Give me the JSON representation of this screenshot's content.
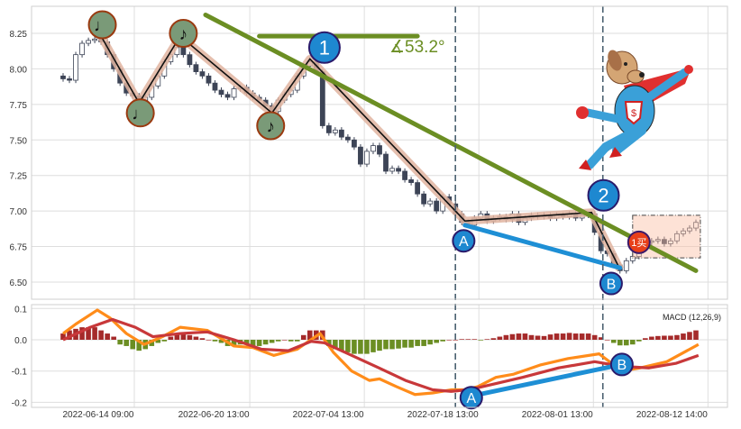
{
  "chart_data": {
    "type": "candlestick",
    "price_panel": {
      "ylim": [
        6.45,
        8.38
      ],
      "yticks": [
        "8.25",
        "8.00",
        "7.75",
        "7.50",
        "7.25",
        "7.00",
        "6.75",
        "6.50"
      ],
      "grid": true,
      "closes": [
        7.93,
        7.92,
        8.1,
        8.18,
        8.2,
        8.21,
        8.19,
        8.1,
        8.0,
        7.9,
        7.83,
        7.81,
        7.78,
        7.8,
        7.88,
        7.95,
        8.05,
        8.1,
        8.15,
        8.1,
        8.03,
        7.98,
        7.95,
        7.9,
        7.85,
        7.82,
        7.8,
        7.86,
        7.87,
        7.83,
        7.8,
        7.78,
        7.74,
        7.7,
        7.78,
        7.82,
        7.85,
        7.95,
        8.02,
        8.05,
        7.98,
        7.6,
        7.55,
        7.57,
        7.52,
        7.5,
        7.45,
        7.33,
        7.42,
        7.46,
        7.4,
        7.28,
        7.3,
        7.28,
        7.22,
        7.2,
        7.12,
        7.05,
        7.07,
        7.0,
        7.1,
        7.05,
        6.98,
        6.92,
        6.9,
        6.95,
        6.98,
        6.93,
        6.95,
        6.96,
        6.94,
        6.98,
        6.92,
        6.95,
        6.97,
        6.96,
        6.97,
        6.95,
        6.97,
        6.96,
        6.98,
        6.95,
        6.97,
        6.98,
        6.85,
        6.72,
        6.7,
        6.62,
        6.58,
        6.65,
        6.68,
        6.76,
        6.78,
        6.79,
        6.8,
        6.77,
        6.79,
        6.84,
        6.86,
        6.88,
        6.92
      ],
      "first_open": 7.95,
      "zigzag": [
        [
          6,
          8.23
        ],
        [
          12,
          7.76
        ],
        [
          18.5,
          8.23
        ],
        [
          33,
          7.69
        ],
        [
          39,
          8.07
        ],
        [
          63.5,
          6.93
        ],
        [
          83.5,
          6.99
        ],
        [
          88,
          6.59
        ]
      ],
      "trendline": [
        [
          22.5,
          8.38
        ],
        [
          100,
          6.58
        ]
      ],
      "angle_reference": [
        [
          31,
          8.23
        ],
        [
          56,
          8.23
        ]
      ],
      "angle_label": "∡53.2°",
      "divergence_line": [
        [
          63.5,
          6.9
        ],
        [
          88,
          6.6
        ]
      ],
      "note_markers": [
        {
          "i": 6.2,
          "p": 8.31,
          "glyph": "♩"
        },
        {
          "i": 12.2,
          "p": 7.69,
          "glyph": "♩"
        },
        {
          "i": 19,
          "p": 8.25,
          "glyph": "♪"
        },
        {
          "i": 32.8,
          "p": 7.6,
          "glyph": "♪"
        }
      ],
      "wave_markers": [
        {
          "i": 41.3,
          "p": 8.15,
          "label": "1"
        },
        {
          "i": 85.4,
          "p": 7.11,
          "label": "2"
        },
        {
          "i": 63.3,
          "p": 6.79,
          "label": "A"
        },
        {
          "i": 86.6,
          "p": 6.49,
          "label": "B"
        }
      ],
      "buy_marker": {
        "i": 91,
        "p": 6.78,
        "label": "1买"
      },
      "zone_box": {
        "i0": 90,
        "i1": 100.7,
        "p0": 6.67,
        "p1": 6.97
      },
      "signal_lines_at": [
        64.2,
        87.5
      ]
    },
    "macd_panel": {
      "title": "MACD (12,26,9)",
      "ylim": [
        -0.2,
        0.105
      ],
      "yticks": [
        "0.1",
        "0.0",
        "-0.1",
        "-0.2"
      ],
      "histogram": [
        0.02,
        0.03,
        0.035,
        0.04,
        0.04,
        0.04,
        0.03,
        0.02,
        0.01,
        -0.015,
        -0.02,
        -0.03,
        -0.035,
        -0.03,
        -0.02,
        -0.01,
        -0.005,
        0.01,
        0.02,
        0.02,
        0.015,
        0.01,
        0.005,
        0.0,
        -0.005,
        -0.01,
        -0.02,
        -0.02,
        -0.015,
        -0.015,
        -0.02,
        -0.02,
        -0.015,
        -0.01,
        -0.005,
        0.0,
        -0.005,
        -0.005,
        0.015,
        0.03,
        0.03,
        0.03,
        -0.02,
        -0.03,
        -0.035,
        -0.04,
        -0.045,
        -0.045,
        -0.045,
        -0.04,
        -0.035,
        -0.03,
        -0.03,
        -0.028,
        -0.025,
        -0.025,
        -0.02,
        -0.02,
        -0.015,
        -0.01,
        -0.005,
        0.0,
        0.0,
        0.002,
        0.002,
        0.002,
        -0.002,
        0.002,
        0.005,
        0.01,
        0.015,
        0.018,
        0.02,
        0.02,
        0.015,
        0.013,
        0.012,
        0.017,
        0.02,
        0.02,
        0.022,
        0.02,
        0.02,
        0.02,
        0.015,
        0.008,
        0.0,
        -0.01,
        -0.018,
        -0.018,
        -0.015,
        -0.005,
        0.005,
        0.01,
        0.012,
        0.013,
        0.013,
        0.015,
        0.02,
        0.025,
        0.03
      ],
      "dif": [
        [
          0,
          0.02
        ],
        [
          2,
          0.05
        ],
        [
          5.4,
          0.095
        ],
        [
          7.4,
          0.07
        ],
        [
          10,
          0.02
        ],
        [
          12.8,
          -0.015
        ],
        [
          15.7,
          0.01
        ],
        [
          18.5,
          0.04
        ],
        [
          22.8,
          0.03
        ],
        [
          27,
          -0.02
        ],
        [
          30,
          -0.025
        ],
        [
          33.3,
          -0.05
        ],
        [
          37,
          -0.03
        ],
        [
          40.6,
          0.02
        ],
        [
          42.7,
          -0.04
        ],
        [
          45.6,
          -0.1
        ],
        [
          48.4,
          -0.13
        ],
        [
          50,
          -0.125
        ],
        [
          52.7,
          -0.15
        ],
        [
          55.6,
          -0.175
        ],
        [
          58.4,
          -0.17
        ],
        [
          61.3,
          -0.16
        ],
        [
          63.4,
          -0.16
        ],
        [
          65.5,
          -0.15
        ],
        [
          68.4,
          -0.12
        ],
        [
          71.2,
          -0.11
        ],
        [
          75.5,
          -0.08
        ],
        [
          79.8,
          -0.06
        ],
        [
          84.7,
          -0.045
        ],
        [
          88.3,
          -0.1
        ],
        [
          91.2,
          -0.09
        ],
        [
          95.4,
          -0.07
        ],
        [
          100.4,
          -0.015
        ]
      ],
      "dea": [
        [
          0,
          0.0
        ],
        [
          4.3,
          0.04
        ],
        [
          7.8,
          0.065
        ],
        [
          11.4,
          0.04
        ],
        [
          14.2,
          0.01
        ],
        [
          18.5,
          0.02
        ],
        [
          22.8,
          0.025
        ],
        [
          27,
          0.0
        ],
        [
          31.3,
          -0.03
        ],
        [
          35.6,
          -0.035
        ],
        [
          39.2,
          -0.005
        ],
        [
          41.3,
          -0.01
        ],
        [
          45.6,
          -0.05
        ],
        [
          49.9,
          -0.09
        ],
        [
          54.1,
          -0.13
        ],
        [
          58.4,
          -0.16
        ],
        [
          61.3,
          -0.165
        ],
        [
          64.1,
          -0.16
        ],
        [
          68.4,
          -0.14
        ],
        [
          72.6,
          -0.12
        ],
        [
          78.3,
          -0.09
        ],
        [
          84,
          -0.07
        ],
        [
          88.3,
          -0.085
        ],
        [
          92.6,
          -0.09
        ],
        [
          96.9,
          -0.075
        ],
        [
          100.4,
          -0.05
        ]
      ],
      "divergence_line": [
        [
          64.5,
          -0.18
        ],
        [
          88,
          -0.08
        ]
      ],
      "wave_markers": [
        {
          "i": 64.5,
          "v": -0.185,
          "label": "A"
        },
        {
          "i": 88.3,
          "v": -0.079,
          "label": "B"
        }
      ]
    },
    "xticks": [
      {
        "i": 11.25,
        "label": "2022-06-14 09:00"
      },
      {
        "i": 29.5,
        "label": "2022-06-20 13:00"
      },
      {
        "i": 47.6,
        "label": "2022-07-04 13:00"
      },
      {
        "i": 65.7,
        "label": "2022-07-18 13:00"
      },
      {
        "i": 83.8,
        "label": "2022-08-01 13:00"
      },
      {
        "i": 101.9,
        "label": "2022-08-12 14:00"
      }
    ],
    "colors": {
      "up_candle": "#ffffff",
      "down_candle": "#3d4456",
      "trendline": "#6b8e23",
      "divergence": "#1e8fd5",
      "zigzag": "#111111",
      "zigzag_halo": "#e0b4a0",
      "dif": "#ff8c1a",
      "dea": "#c8383a",
      "hist_pos": "#a52a2a",
      "hist_neg": "#6b8e23",
      "wave_marker": "#1e88d0",
      "note_marker": "#7a9a78",
      "buy_marker": "#e8401a"
    }
  }
}
